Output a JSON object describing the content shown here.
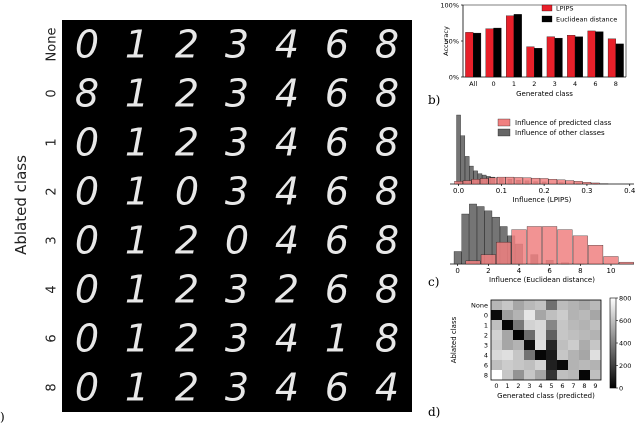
{
  "panel_a": {
    "marker": ")",
    "ylabel": "Ablated class",
    "row_labels": [
      "None",
      "0",
      "1",
      "2",
      "3",
      "4",
      "6",
      "8"
    ],
    "grid": [
      [
        "0",
        "1",
        "2",
        "3",
        "4",
        "6",
        "8"
      ],
      [
        "8",
        "1",
        "2",
        "3",
        "4",
        "6",
        "8"
      ],
      [
        "0",
        "1",
        "2",
        "3",
        "4",
        "6",
        "8"
      ],
      [
        "0",
        "1",
        "0",
        "3",
        "4",
        "6",
        "8"
      ],
      [
        "0",
        "1",
        "2",
        "0",
        "4",
        "6",
        "8"
      ],
      [
        "0",
        "1",
        "2",
        "3",
        "2",
        "6",
        "8"
      ],
      [
        "0",
        "1",
        "2",
        "3",
        "4",
        "1",
        "8"
      ],
      [
        "0",
        "1",
        "2",
        "3",
        "4",
        "6",
        "4"
      ]
    ]
  },
  "panel_b": {
    "marker": "b)"
  },
  "panel_c": {
    "marker": "c)"
  },
  "panel_d": {
    "marker": "d)"
  },
  "chart_data": [
    {
      "type": "bar",
      "panel": "b",
      "categories": [
        "All",
        "0",
        "1",
        "2",
        "3",
        "4",
        "6",
        "8"
      ],
      "xlabel": "Generated class",
      "ylabel": "Accuracy",
      "ylim": [
        0,
        100
      ],
      "yticks": [
        "0%",
        "50%",
        "100%"
      ],
      "legend_position": "top-right",
      "series": [
        {
          "name": "LPIPS",
          "color": "#e8202a",
          "values": [
            62,
            67,
            85,
            42,
            56,
            58,
            64,
            53
          ]
        },
        {
          "name": "Euclidean distance",
          "color": "#000000",
          "values": [
            61,
            68,
            87,
            40,
            54,
            56,
            63,
            46
          ]
        }
      ]
    },
    {
      "type": "area",
      "panel": "c-top",
      "xlabel": "Influence (LPIPS)",
      "xlim": [
        -0.02,
        0.41
      ],
      "xticks": [
        "0.0",
        "0.1",
        "0.2",
        "0.3",
        "0.4"
      ],
      "legend_position": "top-right",
      "series": [
        {
          "name": "Influence of predicted class",
          "color": "#f08080",
          "x": [
            0.0,
            0.02,
            0.04,
            0.06,
            0.08,
            0.1,
            0.12,
            0.14,
            0.16,
            0.18,
            0.2,
            0.22,
            0.24,
            0.26,
            0.28,
            0.3,
            0.32,
            0.34
          ],
          "values": [
            4,
            5,
            7,
            8,
            9,
            10,
            10,
            9.5,
            9,
            8.5,
            8,
            7,
            6,
            5,
            4,
            2.5,
            1.5,
            0.5
          ]
        },
        {
          "name": "Influence of other classes",
          "color": "#666666",
          "x": [
            0.0,
            0.01,
            0.02,
            0.03,
            0.04,
            0.05,
            0.06,
            0.07,
            0.08,
            0.1,
            0.12,
            0.14,
            0.16,
            0.18,
            0.2,
            0.24,
            0.28,
            0.32
          ],
          "values": [
            100,
            70,
            40,
            26,
            19,
            15,
            13,
            11,
            10,
            8,
            7,
            5.5,
            4.5,
            3.5,
            3,
            2,
            1.5,
            0.8
          ]
        }
      ]
    },
    {
      "type": "area",
      "panel": "c-bottom",
      "xlabel": "Influence (Euclidean distance)",
      "xlim": [
        -0.5,
        11.5
      ],
      "xticks": [
        "0",
        "2",
        "4",
        "6",
        "8",
        "10"
      ],
      "series": [
        {
          "name": "Influence of predicted class",
          "color": "#f08080",
          "x": [
            1,
            2,
            3,
            4,
            5,
            6,
            7,
            8,
            9,
            10,
            11
          ],
          "values": [
            5,
            15,
            35,
            55,
            60,
            60,
            55,
            45,
            30,
            12,
            3
          ]
        },
        {
          "name": "Influence of other classes",
          "color": "#666666",
          "x": [
            0,
            0.5,
            1,
            1.5,
            2,
            2.5,
            3,
            3.5,
            4,
            5,
            6,
            7,
            8
          ],
          "values": [
            20,
            80,
            96,
            92,
            85,
            75,
            60,
            45,
            32,
            15,
            6,
            2,
            0.5
          ]
        }
      ]
    },
    {
      "type": "heatmap",
      "panel": "d",
      "xlabel": "Generated class (predicted)",
      "ylabel": "Ablated class",
      "x_categories": [
        "0",
        "1",
        "2",
        "3",
        "4",
        "5",
        "6",
        "7",
        "8",
        "9"
      ],
      "y_categories": [
        "None",
        "0",
        "1",
        "2",
        "3",
        "4",
        "6",
        "8"
      ],
      "colorbar_ticks": [
        "0",
        "200",
        "400",
        "600",
        "800"
      ],
      "colorbar_range": [
        0,
        800
      ],
      "values": [
        [
          570,
          620,
          520,
          580,
          610,
          350,
          590,
          560,
          530,
          580
        ],
        [
          30,
          500,
          560,
          720,
          520,
          600,
          640,
          560,
          580,
          520
        ],
        [
          600,
          20,
          380,
          660,
          680,
          420,
          620,
          580,
          560,
          600
        ],
        [
          660,
          520,
          10,
          340,
          680,
          300,
          620,
          600,
          580,
          560
        ],
        [
          640,
          520,
          560,
          40,
          700,
          120,
          600,
          640,
          540,
          620
        ],
        [
          680,
          700,
          620,
          360,
          20,
          80,
          620,
          560,
          520,
          700
        ],
        [
          600,
          640,
          620,
          600,
          660,
          100,
          30,
          560,
          580,
          560
        ],
        [
          800,
          620,
          460,
          620,
          520,
          160,
          600,
          580,
          20,
          600
        ]
      ]
    }
  ]
}
